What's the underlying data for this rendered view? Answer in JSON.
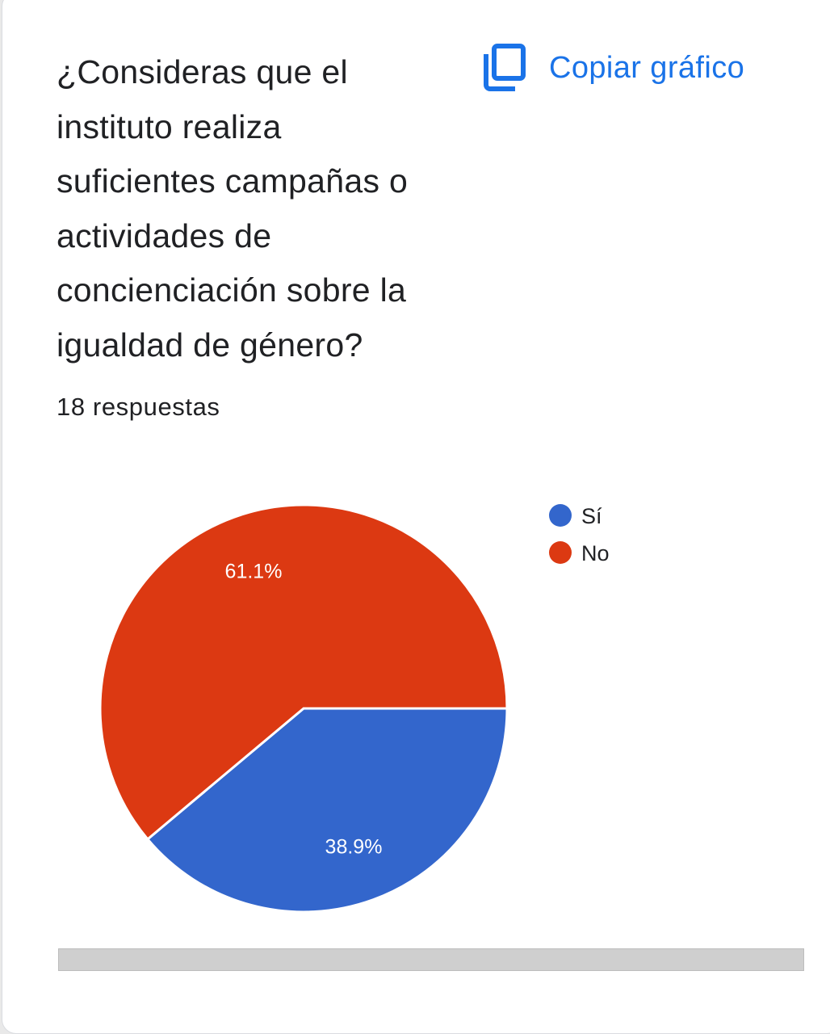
{
  "header": {
    "question": "¿Consideras que el instituto realiza suficientes campañas o actividades de concienciación sobre la igualdad de género?",
    "responses": "18 respuestas",
    "copy_label": "Copiar gráfico",
    "copy_icon": "copy-icon"
  },
  "colors": {
    "si": "#3366cc",
    "no": "#dc3912",
    "accent": "#1a73e8"
  },
  "chart_data": {
    "type": "pie",
    "categories": [
      "Sí",
      "No"
    ],
    "values": [
      38.9,
      61.1
    ],
    "labels": [
      "38.9%",
      "61.1%"
    ],
    "colors": [
      "#3366cc",
      "#dc3912"
    ],
    "legend": "top-right"
  }
}
